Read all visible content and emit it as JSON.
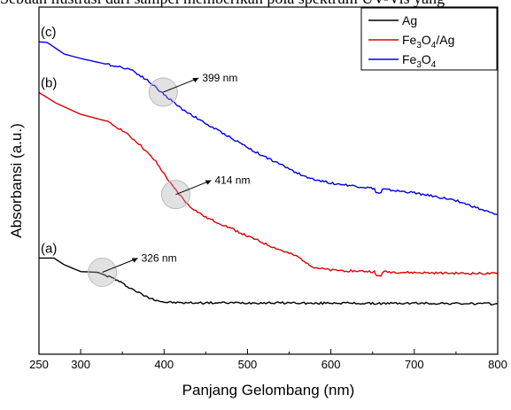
{
  "header_fragment": "Sebuah ilustrasi dari sampel memberikan pola spektrum UV-Vis yang",
  "chart_data": {
    "type": "line",
    "xlabel": "Panjang Gelombang (nm)",
    "ylabel": "Absorbansi (a.u.)",
    "xlim": [
      250,
      800
    ],
    "ylim": [
      0,
      1
    ],
    "x_ticks": [
      300,
      400,
      500,
      600,
      700,
      800
    ],
    "y_ticks_shown": false,
    "grid": false,
    "legend": {
      "placement": "top-right",
      "entries": [
        {
          "series": "Ag",
          "label_parts": [
            [
              "Ag",
              "n"
            ]
          ]
        },
        {
          "series": "Fe3O4/Ag",
          "label_parts": [
            [
              "Fe",
              "n"
            ],
            [
              "3",
              "sub"
            ],
            [
              "O",
              "n"
            ],
            [
              "4",
              "sub"
            ],
            [
              "/Ag",
              "n"
            ]
          ]
        },
        {
          "series": "Fe3O4",
          "label_parts": [
            [
              "Fe",
              "n"
            ],
            [
              "3",
              "sub"
            ],
            [
              "O",
              "n"
            ],
            [
              "4",
              "sub"
            ]
          ]
        }
      ]
    },
    "series": [
      {
        "name": "Ag",
        "tag": "(a)",
        "color": "#000000",
        "x": [
          250,
          268,
          280,
          300,
          320,
          340,
          360,
          380,
          400,
          420,
          500,
          560,
          580,
          600,
          650,
          700,
          750,
          800
        ],
        "y": [
          0.277,
          0.277,
          0.258,
          0.238,
          0.236,
          0.218,
          0.19,
          0.164,
          0.15,
          0.148,
          0.148,
          0.148,
          0.146,
          0.148,
          0.146,
          0.147,
          0.146,
          0.145
        ]
      },
      {
        "name": "Fe3O4/Ag",
        "tag": "(b)",
        "color": "#e00000",
        "x": [
          250,
          270,
          300,
          330,
          350,
          370,
          390,
          410,
          430,
          450,
          480,
          500,
          530,
          560,
          580,
          600,
          650,
          700,
          750,
          800
        ],
        "y": [
          0.754,
          0.724,
          0.691,
          0.672,
          0.645,
          0.606,
          0.555,
          0.484,
          0.427,
          0.394,
          0.363,
          0.34,
          0.309,
          0.281,
          0.25,
          0.242,
          0.238,
          0.235,
          0.233,
          0.232
        ]
      },
      {
        "name": "Fe3O4",
        "tag": "(c)",
        "color": "#0000e6",
        "x": [
          250,
          260,
          280,
          300,
          330,
          360,
          380,
          400,
          420,
          450,
          480,
          510,
          540,
          570,
          600,
          650,
          700,
          750,
          800
        ],
        "y": [
          0.9,
          0.898,
          0.865,
          0.852,
          0.836,
          0.821,
          0.789,
          0.748,
          0.709,
          0.664,
          0.624,
          0.582,
          0.546,
          0.51,
          0.493,
          0.478,
          0.465,
          0.443,
          0.4
        ]
      }
    ],
    "annotations": [
      {
        "text": "399 nm",
        "series": "Fe3O4",
        "x": 399,
        "y": 0.755
      },
      {
        "text": "414 nm",
        "series": "Fe3O4/Ag",
        "x": 414,
        "y": 0.46
      },
      {
        "text": "326 nm",
        "series": "Ag",
        "x": 326,
        "y": 0.236
      }
    ]
  }
}
